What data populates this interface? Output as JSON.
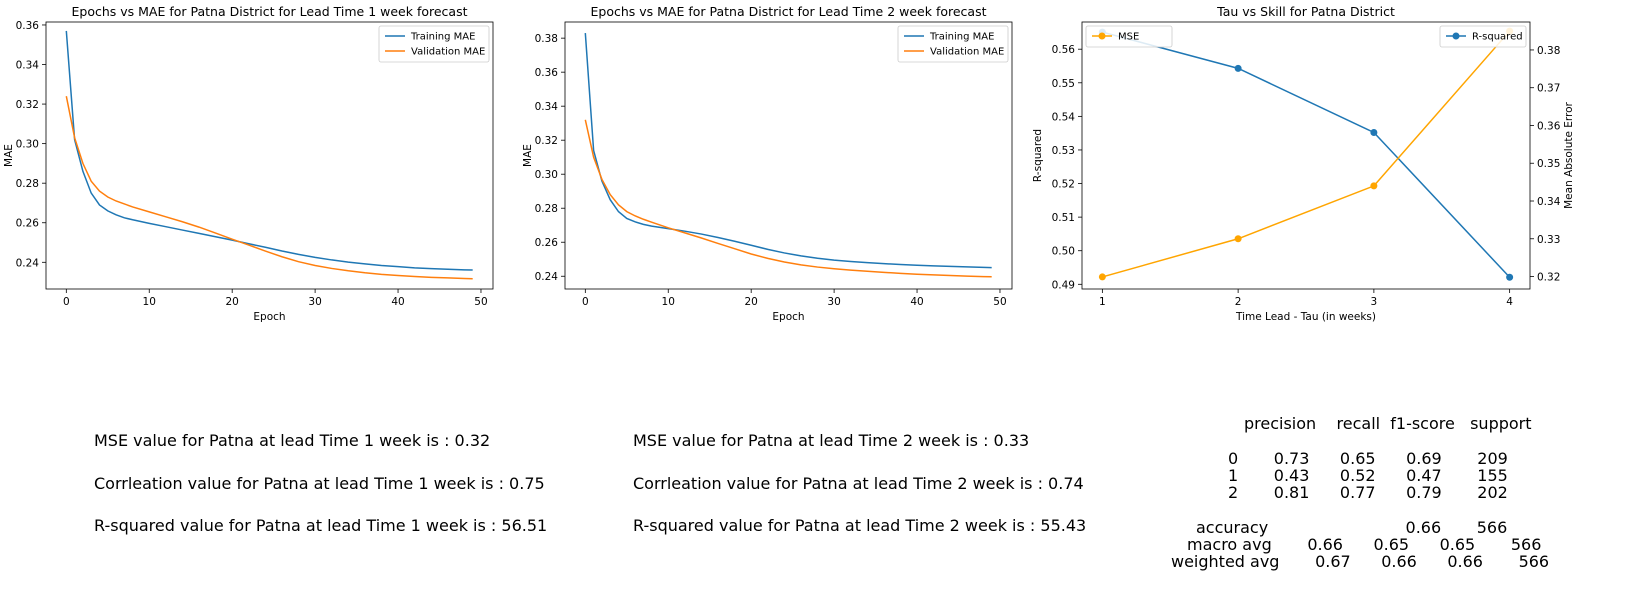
{
  "chart_data": [
    {
      "type": "line",
      "title": "Epochs vs MAE for Patna District for Lead Time 1 week forecast",
      "xlabel": "Epoch",
      "ylabel": "MAE",
      "xlim": [
        -2.45,
        51.45
      ],
      "ylim": [
        0.2265,
        0.3615
      ],
      "xticks": [
        0,
        10,
        20,
        30,
        40,
        50
      ],
      "yticks": [
        0.24,
        0.26,
        0.28,
        0.3,
        0.32,
        0.34,
        0.36
      ],
      "ytick_decimals": 2,
      "legend_position": "top-right",
      "series": [
        {
          "name": "Training MAE",
          "color": "#1f77b4",
          "x": [
            0,
            1,
            2,
            3,
            4,
            5,
            6,
            7,
            8,
            10,
            12,
            14,
            16,
            18,
            20,
            22,
            24,
            26,
            28,
            30,
            32,
            34,
            36,
            38,
            40,
            42,
            44,
            46,
            48,
            49
          ],
          "y": [
            0.357,
            0.302,
            0.286,
            0.275,
            0.269,
            0.266,
            0.264,
            0.2625,
            0.2615,
            0.2597,
            0.258,
            0.2563,
            0.2546,
            0.2529,
            0.2512,
            0.2494,
            0.2476,
            0.2457,
            0.244,
            0.2425,
            0.2412,
            0.2401,
            0.2392,
            0.2384,
            0.2378,
            0.2372,
            0.2368,
            0.2365,
            0.2362,
            0.2361
          ]
        },
        {
          "name": "Validation MAE",
          "color": "#ff7f0e",
          "x": [
            0,
            1,
            2,
            3,
            4,
            5,
            6,
            7,
            8,
            10,
            12,
            14,
            16,
            18,
            20,
            22,
            24,
            26,
            28,
            30,
            32,
            34,
            36,
            38,
            40,
            42,
            44,
            46,
            48,
            49
          ],
          "y": [
            0.324,
            0.303,
            0.29,
            0.281,
            0.276,
            0.273,
            0.271,
            0.2695,
            0.268,
            0.2655,
            0.263,
            0.2605,
            0.2578,
            0.2548,
            0.2517,
            0.2487,
            0.2457,
            0.2428,
            0.2403,
            0.2384,
            0.2369,
            0.2357,
            0.2347,
            0.2339,
            0.2333,
            0.2328,
            0.2324,
            0.2321,
            0.2318,
            0.2317
          ]
        }
      ]
    },
    {
      "type": "line",
      "title": "Epochs vs MAE for Patna District for Lead Time 2 week forecast",
      "xlabel": "Epoch",
      "ylabel": "MAE",
      "xlim": [
        -2.45,
        51.45
      ],
      "ylim": [
        0.2325,
        0.3895
      ],
      "xticks": [
        0,
        10,
        20,
        30,
        40,
        50
      ],
      "yticks": [
        0.24,
        0.26,
        0.28,
        0.3,
        0.32,
        0.34,
        0.36,
        0.38
      ],
      "ytick_decimals": 2,
      "legend_position": "top-right",
      "series": [
        {
          "name": "Training MAE",
          "color": "#1f77b4",
          "x": [
            0,
            1,
            2,
            3,
            4,
            5,
            6,
            7,
            8,
            10,
            12,
            14,
            16,
            18,
            20,
            22,
            24,
            26,
            28,
            30,
            32,
            34,
            36,
            38,
            40,
            42,
            44,
            46,
            48,
            49
          ],
          "y": [
            0.383,
            0.314,
            0.296,
            0.285,
            0.278,
            0.274,
            0.272,
            0.2705,
            0.2695,
            0.268,
            0.2665,
            0.2648,
            0.2628,
            0.2606,
            0.2582,
            0.2558,
            0.2537,
            0.252,
            0.2506,
            0.2495,
            0.2487,
            0.248,
            0.2474,
            0.2469,
            0.2465,
            0.2461,
            0.2458,
            0.2455,
            0.2452,
            0.2451
          ]
        },
        {
          "name": "Validation MAE",
          "color": "#ff7f0e",
          "x": [
            0,
            1,
            2,
            3,
            4,
            5,
            6,
            7,
            8,
            10,
            12,
            14,
            16,
            18,
            20,
            22,
            24,
            26,
            28,
            30,
            32,
            34,
            36,
            38,
            40,
            42,
            44,
            46,
            48,
            49
          ],
          "y": [
            0.332,
            0.31,
            0.297,
            0.288,
            0.282,
            0.278,
            0.2755,
            0.2735,
            0.2718,
            0.2685,
            0.2655,
            0.2625,
            0.2593,
            0.2562,
            0.2531,
            0.2505,
            0.2484,
            0.2467,
            0.2454,
            0.2444,
            0.2436,
            0.2429,
            0.2423,
            0.2417,
            0.2412,
            0.2408,
            0.2404,
            0.2401,
            0.2398,
            0.2397
          ]
        }
      ]
    },
    {
      "type": "line",
      "title": "Tau vs Skill for Patna District",
      "xlabel": "Time Lead - Tau (in weeks)",
      "ylabel": "R-squared",
      "y2label": "Mean Absolute Error",
      "xlim": [
        0.85,
        4.15
      ],
      "ylim": [
        0.4886,
        0.5681
      ],
      "y2lim": [
        0.3167,
        0.3874
      ],
      "xticks": [
        1,
        2,
        3,
        4
      ],
      "yticks": [
        0.49,
        0.5,
        0.51,
        0.52,
        0.53,
        0.54,
        0.55,
        0.56
      ],
      "y2ticks": [
        0.32,
        0.33,
        0.34,
        0.35,
        0.36,
        0.37,
        0.38
      ],
      "ytick_decimals": 2,
      "series": [
        {
          "name": "R-squared",
          "color": "#1f77b4",
          "axis": "left",
          "legend_position": "top-right",
          "x": [
            1,
            2,
            3,
            4
          ],
          "y": [
            0.5651,
            0.5543,
            0.5352,
            0.4921
          ]
        },
        {
          "name": "MSE",
          "color": "#ffa500",
          "axis": "right",
          "legend_position": "top-left",
          "x": [
            1,
            2,
            3,
            4
          ],
          "y": [
            0.3199,
            0.33,
            0.344,
            0.385
          ]
        }
      ]
    }
  ],
  "stats": {
    "lead1": [
      "MSE value for Patna at lead Time 1 week is : 0.32",
      "Corrleation value for Patna at lead Time 1 week is : 0.75",
      "R-squared value for Patna at lead Time 1 week is : 56.51"
    ],
    "lead2": [
      "MSE value for Patna at lead Time 2 week is : 0.33",
      "Corrleation value for Patna at lead Time 2 week is : 0.74",
      "R-squared value for Patna at lead Time 2 week is : 55.43"
    ]
  },
  "report": {
    "header": "precision    recall  f1-score   support",
    "rows": [
      "0       0.73      0.65      0.69       209",
      "1       0.43      0.52      0.47       155",
      "2       0.81      0.77      0.79       202"
    ],
    "summary": [
      "accuracy                           0.66       566",
      "macro avg       0.66      0.65      0.65       566",
      "weighted avg       0.67      0.66      0.66       566"
    ]
  }
}
